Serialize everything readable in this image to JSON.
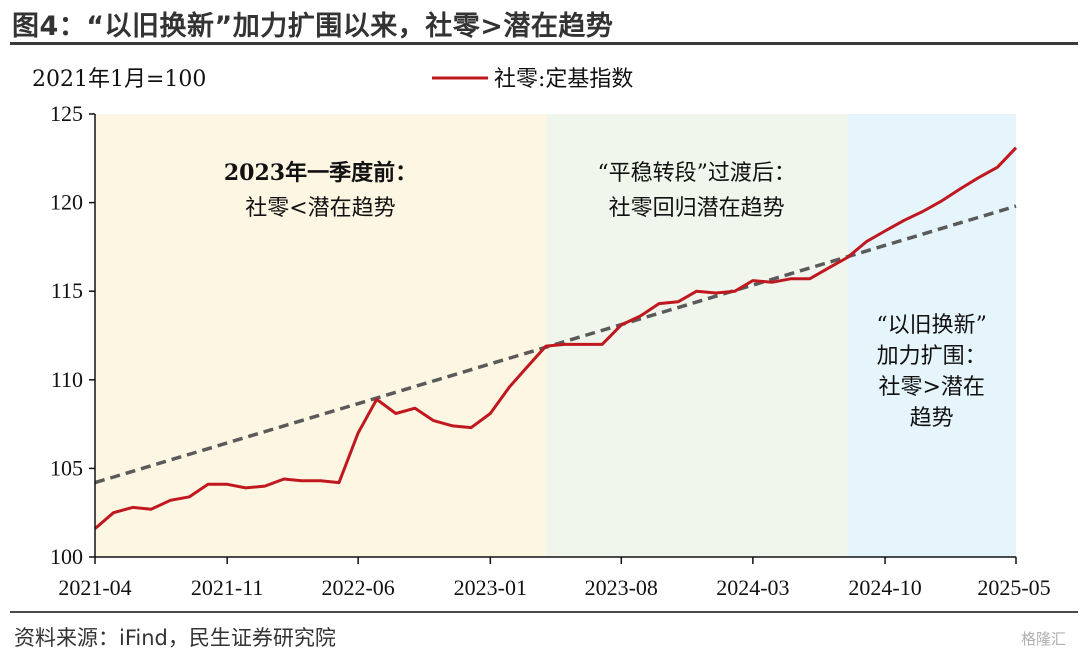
{
  "header": {
    "title": "图4：“以旧换新”加力扩围以来，社零>潜在趋势"
  },
  "footer": {
    "source": "资料来源：iFind，民生证券研究院",
    "watermark": "格隆汇"
  },
  "chart_data": {
    "type": "line",
    "title": "",
    "unit_label": "2021年1月=100",
    "xlabel": "",
    "ylabel": "",
    "ylim": [
      100,
      125
    ],
    "yticks": [
      100,
      105,
      110,
      115,
      120,
      125
    ],
    "xticks": [
      "2021-04",
      "2021-11",
      "2022-06",
      "2023-01",
      "2023-08",
      "2024-03",
      "2024-10",
      "2025-05"
    ],
    "grid": false,
    "legend": {
      "placement": "top-center",
      "entries": [
        "社零:定基指数"
      ]
    },
    "series": [
      {
        "name": "社零:定基指数",
        "color": "#c0181f",
        "style": "solid",
        "x": [
          "2021-04",
          "2021-05",
          "2021-06",
          "2021-07",
          "2021-08",
          "2021-09",
          "2021-10",
          "2021-11",
          "2021-12",
          "2022-01",
          "2022-02",
          "2022-03",
          "2022-04",
          "2022-05",
          "2022-06",
          "2022-07",
          "2022-08",
          "2022-09",
          "2022-10",
          "2022-11",
          "2022-12",
          "2023-01",
          "2023-02",
          "2023-03",
          "2023-04",
          "2023-05",
          "2023-06",
          "2023-07",
          "2023-08",
          "2023-09",
          "2023-10",
          "2023-11",
          "2023-12",
          "2024-01",
          "2024-02",
          "2024-03",
          "2024-04",
          "2024-05",
          "2024-06",
          "2024-07",
          "2024-08",
          "2024-09",
          "2024-10",
          "2024-11",
          "2024-12",
          "2025-01",
          "2025-02",
          "2025-03",
          "2025-04",
          "2025-05"
        ],
        "values": [
          101.6,
          102.5,
          102.8,
          102.7,
          103.2,
          103.4,
          104.1,
          104.1,
          103.9,
          104.0,
          104.4,
          104.3,
          104.3,
          104.2,
          107.0,
          108.9,
          108.1,
          108.4,
          107.7,
          107.4,
          107.3,
          108.1,
          109.6,
          110.7,
          111.9,
          112.0,
          112.0,
          112.0,
          113.1,
          113.6,
          114.3,
          114.4,
          115.0,
          114.9,
          115.0,
          115.6,
          115.5,
          115.7,
          115.7,
          116.3,
          116.9,
          117.8,
          118.4,
          119.0,
          119.5,
          120.1,
          120.8,
          121.4,
          122.0,
          123.1
        ]
      },
      {
        "name": "潜在趋势",
        "color": "#5a5a5a",
        "style": "dashed",
        "x": [
          "2021-04",
          "2025-05"
        ],
        "values": [
          104.2,
          119.8
        ]
      }
    ],
    "regions": [
      {
        "from": "2021-04",
        "to": "2023-04",
        "color": "#fdf6e3",
        "label_lines": [
          "2023年一季度前：",
          "社零<潜在趋势"
        ]
      },
      {
        "from": "2023-04",
        "to": "2024-08",
        "color": "#f0f6ec",
        "label_lines": [
          "“平稳转段”过渡后：",
          "社零回归潜在趋势"
        ]
      },
      {
        "from": "2024-08",
        "to": "2025-05",
        "color": "#e6f4fb",
        "label_lines": [
          "“以旧换新”",
          "加力扩围：",
          "社零>潜在",
          "趋势"
        ]
      }
    ]
  }
}
